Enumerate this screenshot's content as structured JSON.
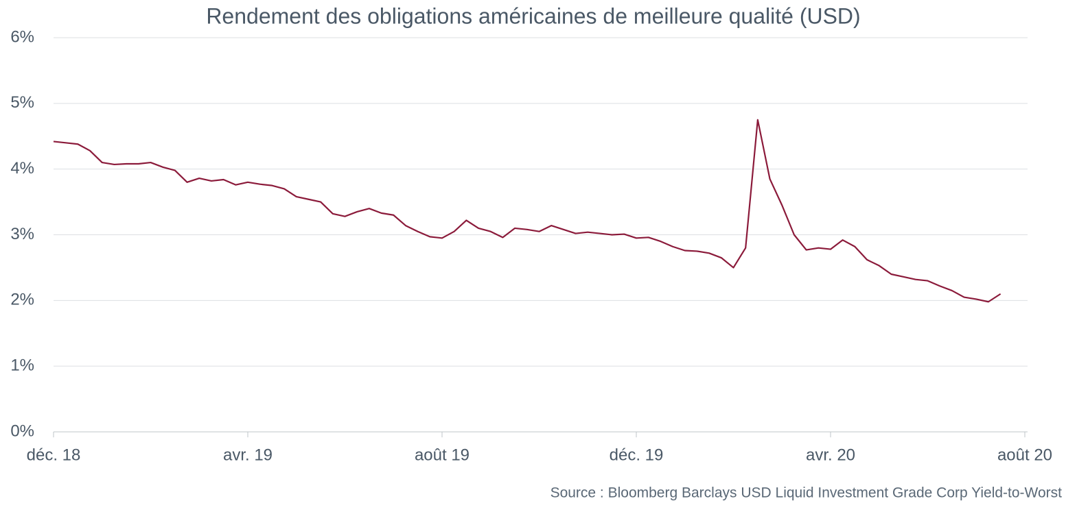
{
  "chart_data": {
    "type": "line",
    "title": "Rendement des obligations américaines de meilleure qualité (USD)",
    "source": "Source : Bloomberg Barclays USD Liquid Investment Grade Corp Yield-to-Worst",
    "categories": [
      "déc. 18",
      null,
      null,
      null,
      null,
      null,
      null,
      null,
      null,
      null,
      null,
      null,
      null,
      null,
      null,
      null,
      "avr. 19",
      null,
      null,
      null,
      null,
      null,
      null,
      null,
      null,
      null,
      null,
      null,
      null,
      null,
      null,
      null,
      "août 19",
      null,
      null,
      null,
      null,
      null,
      null,
      null,
      null,
      null,
      null,
      null,
      null,
      null,
      null,
      null,
      "déc. 19",
      null,
      null,
      null,
      null,
      null,
      null,
      null,
      null,
      null,
      null,
      null,
      null,
      null,
      null,
      null,
      "avr. 20",
      null,
      null,
      null,
      null,
      null,
      null,
      null,
      null,
      null,
      null,
      null,
      null,
      null,
      null,
      null,
      "août 20"
    ],
    "series": [
      {
        "name": "Yield-to-Worst",
        "color": "#8b1a3a",
        "values": [
          4.42,
          4.4,
          4.38,
          4.28,
          4.1,
          4.07,
          4.08,
          4.08,
          4.1,
          4.03,
          3.98,
          3.8,
          3.86,
          3.82,
          3.84,
          3.76,
          3.8,
          3.77,
          3.75,
          3.7,
          3.58,
          3.54,
          3.5,
          3.32,
          3.28,
          3.35,
          3.4,
          3.33,
          3.3,
          3.14,
          3.05,
          2.97,
          2.95,
          3.05,
          3.22,
          3.1,
          3.05,
          2.96,
          3.1,
          3.08,
          3.05,
          3.14,
          3.08,
          3.02,
          3.04,
          3.02,
          3.0,
          3.01,
          2.95,
          2.96,
          2.9,
          2.82,
          2.76,
          2.75,
          2.72,
          2.65,
          2.5,
          2.8,
          4.75,
          3.85,
          3.45,
          3.0,
          2.77,
          2.8,
          2.78,
          2.92,
          2.82,
          2.62,
          2.53,
          2.4,
          2.36,
          2.32,
          2.3,
          2.22,
          2.15,
          2.05,
          2.02,
          1.98,
          2.1,
          null,
          null
        ]
      }
    ],
    "ylim": [
      0,
      6
    ],
    "yticks": [
      {
        "value": 0,
        "label": "0%"
      },
      {
        "value": 1,
        "label": "1%"
      },
      {
        "value": 2,
        "label": "2%"
      },
      {
        "value": 3,
        "label": "3%"
      },
      {
        "value": 4,
        "label": "4%"
      },
      {
        "value": 5,
        "label": "5%"
      },
      {
        "value": 6,
        "label": "6%"
      }
    ],
    "grid": true
  }
}
